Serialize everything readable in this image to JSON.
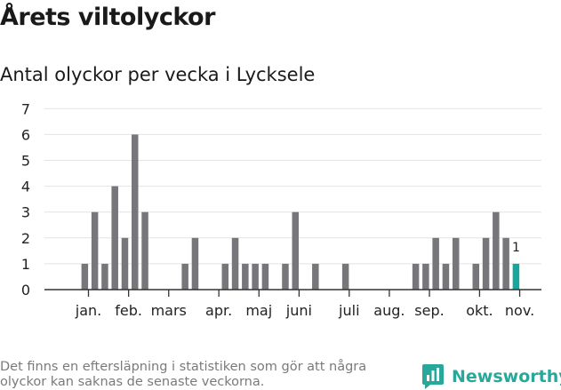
{
  "header": {
    "title": "Årets viltolyckor",
    "subtitle": "Antal olyckor per vecka i Lycksele"
  },
  "footer": {
    "note": "Det finns en eftersläpning i statistiken som gör att några olyckor kan saknas de senaste veckorna.",
    "brand": "Newsworthy"
  },
  "colors": {
    "bar": "#77767b",
    "highlight": "#17a79a",
    "grid": "#e2e2e2",
    "axis": "#333333",
    "brand": "#27a89a"
  },
  "chart_data": {
    "type": "bar",
    "title": "Antal olyckor per vecka i Lycksele",
    "xlabel": "",
    "ylabel": "",
    "ylim": [
      0,
      7
    ],
    "yticks": [
      "0",
      "1",
      "2",
      "3",
      "4",
      "5",
      "6",
      "7"
    ],
    "grid": true,
    "weeks": [
      1,
      2,
      3,
      4,
      5,
      6,
      7,
      8,
      9,
      10,
      11,
      12,
      13,
      14,
      15,
      16,
      17,
      18,
      19,
      20,
      21,
      22,
      23,
      24,
      25,
      26,
      27,
      28,
      29,
      30,
      31,
      32,
      33,
      34,
      35,
      36,
      37,
      38,
      39,
      40,
      41,
      42,
      43,
      44,
      45
    ],
    "values": [
      0,
      0,
      1,
      3,
      1,
      4,
      2,
      6,
      3,
      0,
      0,
      0,
      1,
      2,
      0,
      0,
      1,
      2,
      1,
      1,
      1,
      0,
      1,
      3,
      0,
      1,
      0,
      0,
      1,
      0,
      0,
      0,
      0,
      0,
      0,
      1,
      1,
      2,
      1,
      2,
      0,
      1,
      2,
      3,
      2
    ],
    "extra": [
      {
        "week": 46,
        "value": 1,
        "label": "1",
        "highlight": true
      }
    ],
    "month_labels": [
      {
        "label": "jan.",
        "week": 4
      },
      {
        "label": "feb.",
        "week": 8
      },
      {
        "label": "mars",
        "week": 12
      },
      {
        "label": "apr.",
        "week": 17
      },
      {
        "label": "maj",
        "week": 21
      },
      {
        "label": "juni",
        "week": 25
      },
      {
        "label": "juli",
        "week": 30
      },
      {
        "label": "aug.",
        "week": 34
      },
      {
        "label": "sep.",
        "week": 38
      },
      {
        "label": "okt.",
        "week": 43
      },
      {
        "label": "nov.",
        "week": 47
      }
    ]
  }
}
